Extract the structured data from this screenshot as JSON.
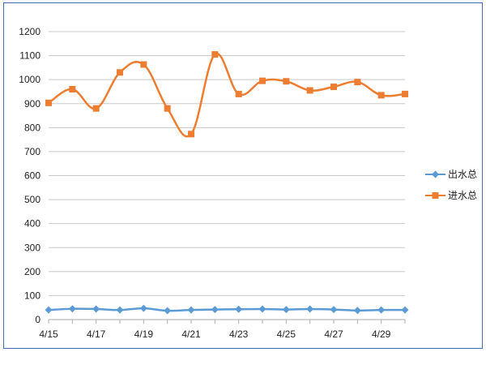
{
  "chart_data": {
    "type": "line",
    "x": [
      "4/15",
      "4/16",
      "4/17",
      "4/18",
      "4/19",
      "4/20",
      "4/21",
      "4/22",
      "4/23",
      "4/24",
      "4/25",
      "4/26",
      "4/27",
      "4/28",
      "4/29",
      "4/30"
    ],
    "x_tick_labels": [
      "4/15",
      "4/17",
      "4/19",
      "4/21",
      "4/23",
      "4/25",
      "4/27",
      "4/29"
    ],
    "ylim": [
      0,
      1200
    ],
    "y_ticks": [
      0,
      100,
      200,
      300,
      400,
      500,
      600,
      700,
      800,
      900,
      1000,
      1100,
      1200
    ],
    "grid": true,
    "legend_position": "right",
    "smooth": true,
    "series": [
      {
        "name": "出水总",
        "color": "#5b9bd5",
        "marker": "diamond",
        "values": [
          40,
          45,
          44,
          40,
          47,
          37,
          40,
          42,
          43,
          44,
          42,
          44,
          42,
          38,
          40,
          40
        ]
      },
      {
        "name": "进水总",
        "color": "#ed7d31",
        "marker": "square",
        "values": [
          903,
          960,
          880,
          1030,
          1063,
          880,
          773,
          1105,
          940,
          995,
          993,
          955,
          970,
          990,
          935,
          940
        ]
      }
    ]
  }
}
